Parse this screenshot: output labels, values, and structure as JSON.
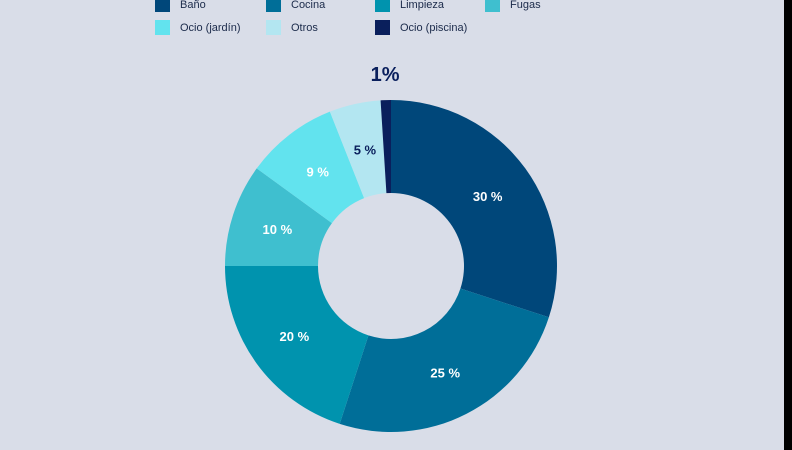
{
  "chart_data": {
    "type": "pie",
    "donut": true,
    "categories": [
      "Baño",
      "Cocina",
      "Limpieza",
      "Fugas",
      "Ocio (jardín)",
      "Otros",
      "Ocio (piscina)"
    ],
    "values": [
      30,
      25,
      20,
      10,
      9,
      5,
      1
    ],
    "labels": [
      "30 %",
      "25 %",
      "20 %",
      "10 %",
      "9 %",
      "5 %",
      "1%"
    ],
    "colors": [
      "#00477a",
      "#006e98",
      "#0093ae",
      "#3fbfcf",
      "#62e3ee",
      "#b3e6f1",
      "#0a1f5c"
    ],
    "legend_position": "top"
  }
}
